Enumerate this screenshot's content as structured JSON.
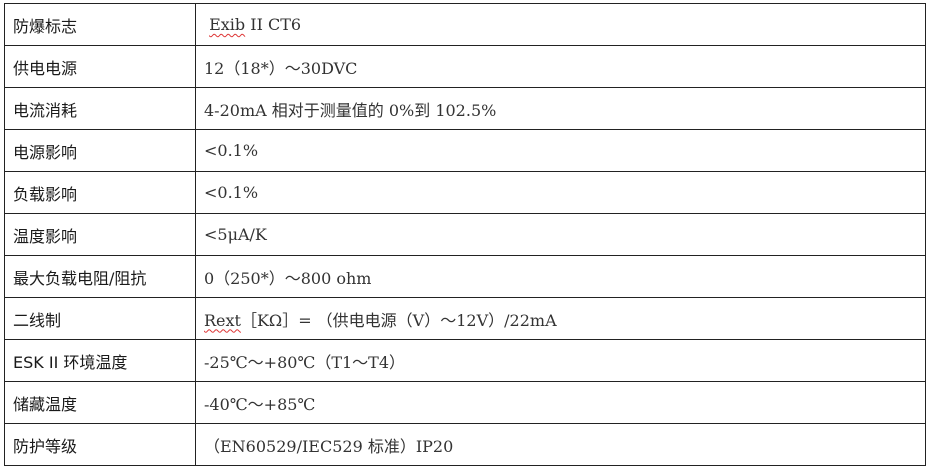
{
  "rows": [
    {
      "label": "防爆标志",
      "value_pre": " ",
      "value_flag": "Exib",
      "value": " II CT6"
    },
    {
      "label": "供电电源",
      "value": "12（18*）～30DVC"
    },
    {
      "label": "电流消耗",
      "value": "4-20mA 相对于测量值的 0%到 102.5%"
    },
    {
      "label": "电源影响",
      "value": "<0.1%"
    },
    {
      "label": "负载影响",
      "value": "<0.1%"
    },
    {
      "label": "温度影响",
      "value": "<5μA/K"
    },
    {
      "label": "最大负载电阻/阻抗",
      "value": "0（250*）～800 ohm"
    },
    {
      "label": "二线制",
      "value_pre": "",
      "value_flag": "Rext",
      "value": "［KΩ］= （供电电源（V）～12V）/22mA"
    },
    {
      "label": "ESK II 环境温度",
      "value": "-25℃～+80℃（T1～T4）"
    },
    {
      "label": "储藏温度",
      "value": "-40℃～+85℃"
    },
    {
      "label": "防护等级",
      "value": "（EN60529/IEC529 标准）IP20"
    }
  ]
}
